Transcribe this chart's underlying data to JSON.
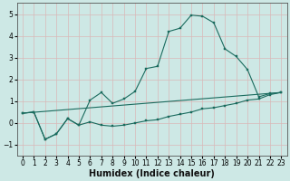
{
  "xlabel": "Humidex (Indice chaleur)",
  "xlim": [
    -0.5,
    23.5
  ],
  "ylim": [
    -1.5,
    5.5
  ],
  "xticks": [
    0,
    1,
    2,
    3,
    4,
    5,
    6,
    7,
    8,
    9,
    10,
    11,
    12,
    13,
    14,
    15,
    16,
    17,
    18,
    19,
    20,
    21,
    22,
    23
  ],
  "yticks": [
    -1,
    0,
    1,
    2,
    3,
    4,
    5
  ],
  "bg_color": "#cde8e5",
  "line_color": "#1a6b5e",
  "grid_color": "#d9b8b8",
  "curve1_x": [
    0,
    1,
    2,
    3,
    4,
    5,
    6,
    7,
    8,
    9,
    10,
    11,
    12,
    13,
    14,
    15,
    16,
    17,
    18,
    19,
    20,
    21,
    22,
    23
  ],
  "curve1_y": [
    0.45,
    0.5,
    -0.75,
    -0.5,
    0.2,
    -0.1,
    1.05,
    1.4,
    0.9,
    1.1,
    1.45,
    2.5,
    2.6,
    4.2,
    4.35,
    4.95,
    4.9,
    4.6,
    3.4,
    3.05,
    2.45,
    1.2,
    1.35,
    1.4
  ],
  "curve2_x": [
    0,
    1,
    2,
    3,
    4,
    5,
    6,
    7,
    8,
    9,
    10,
    11,
    12,
    13,
    14,
    15,
    16,
    17,
    18,
    19,
    20,
    21,
    22,
    23
  ],
  "curve2_y": [
    0.45,
    0.5,
    -0.75,
    -0.5,
    0.2,
    -0.1,
    0.05,
    -0.1,
    -0.15,
    -0.1,
    0.0,
    0.1,
    0.15,
    0.3,
    0.4,
    0.5,
    0.65,
    0.7,
    0.8,
    0.9,
    1.05,
    1.1,
    1.3,
    1.4
  ],
  "curve3_x": [
    0,
    23
  ],
  "curve3_y": [
    0.45,
    1.4
  ],
  "tick_fontsize": 5.5,
  "xlabel_fontsize": 7
}
